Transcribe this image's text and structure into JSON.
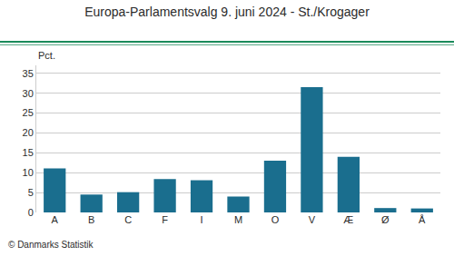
{
  "chart_data": {
    "type": "bar",
    "title": "Europa-Parlamentsvalg 9. juni 2024 - St./Krogager",
    "categories": [
      "A",
      "B",
      "C",
      "F",
      "I",
      "M",
      "O",
      "V",
      "Æ",
      "Ø",
      "Å"
    ],
    "values": [
      11.1,
      4.5,
      5.1,
      8.4,
      8.1,
      4.0,
      13.0,
      31.5,
      14.0,
      1.1,
      1.0
    ],
    "color": "#1a6e8e",
    "ylabel": "Pct.",
    "annotations": [
      "© Danmarks Statistik"
    ],
    "ylim": [
      0,
      37
    ],
    "yticks": [
      0,
      5,
      10,
      15,
      20,
      25,
      30,
      35
    ],
    "grid": true
  }
}
